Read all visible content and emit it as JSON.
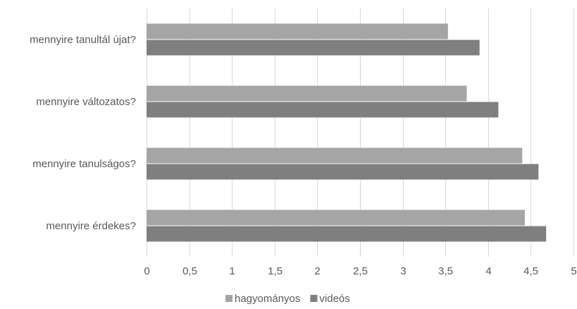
{
  "chart_data": {
    "type": "bar",
    "orientation": "horizontal",
    "categories": [
      "mennyire tanultál újat?",
      "mennyire változatos?",
      "mennyire tanulságos?",
      "mennyire érdekes?"
    ],
    "series": [
      {
        "name": "hagyományos",
        "values": [
          3.53,
          3.75,
          4.4,
          4.43
        ],
        "color": "#a5a5a5"
      },
      {
        "name": "videós",
        "values": [
          3.9,
          4.12,
          4.59,
          4.68
        ],
        "color": "#7f7f7f"
      }
    ],
    "xlim": [
      0,
      5
    ],
    "x_ticks": [
      "0",
      "0,5",
      "1",
      "1,5",
      "2",
      "2,5",
      "3",
      "3,5",
      "4",
      "4,5",
      "5"
    ],
    "x_tick_values": [
      0,
      0.5,
      1,
      1.5,
      2,
      2.5,
      3,
      3.5,
      4,
      4.5,
      5
    ],
    "grid": "vertical",
    "legend": "bottom-center",
    "grid_color": "#d9d9d9",
    "text_color": "#595959"
  }
}
